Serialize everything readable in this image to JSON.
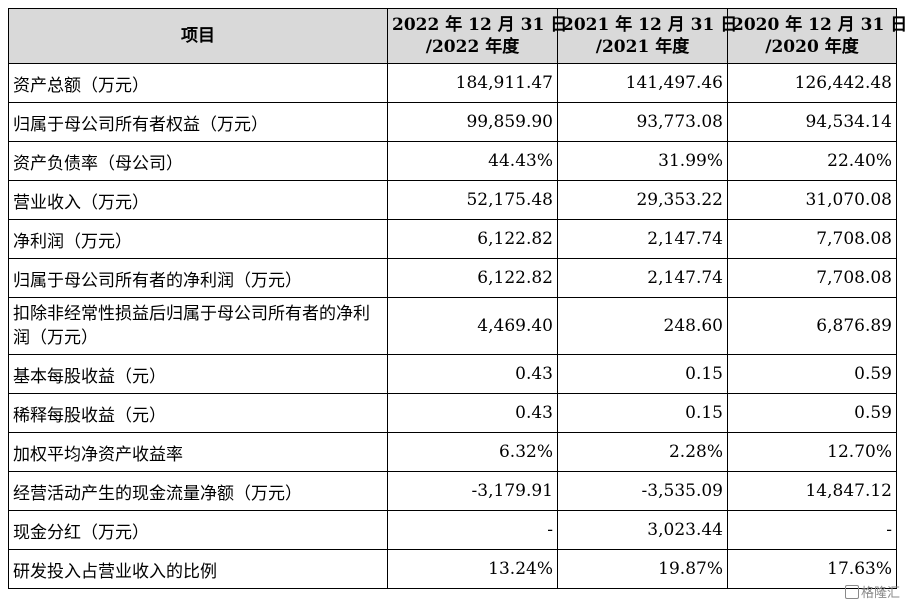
{
  "table": {
    "headers": [
      "项目",
      "2022 年 12 月 31 日 /2022 年度",
      "2021 年 12 月 31 日 /2021 年度",
      "2020 年 12 月 31 日 /2020 年度"
    ],
    "header_lines": [
      [
        "项目"
      ],
      [
        "2022 年 12 月 31 日",
        "/2022 年度"
      ],
      [
        "2021 年 12 月 31 日",
        "/2021 年度"
      ],
      [
        "2020 年 12 月 31 日",
        "/2020 年度"
      ]
    ],
    "rows": [
      {
        "label": "资产总额（万元）",
        "values": [
          "184,911.47",
          "141,497.46",
          "126,442.48"
        ]
      },
      {
        "label": "归属于母公司所有者权益（万元）",
        "values": [
          "99,859.90",
          "93,773.08",
          "94,534.14"
        ]
      },
      {
        "label": "资产负债率（母公司）",
        "values": [
          "44.43%",
          "31.99%",
          "22.40%"
        ]
      },
      {
        "label": "营业收入（万元）",
        "values": [
          "52,175.48",
          "29,353.22",
          "31,070.08"
        ]
      },
      {
        "label": "净利润（万元）",
        "values": [
          "6,122.82",
          "2,147.74",
          "7,708.08"
        ]
      },
      {
        "label": "归属于母公司所有者的净利润（万元）",
        "values": [
          "6,122.82",
          "2,147.74",
          "7,708.08"
        ]
      },
      {
        "label": "扣除非经常性损益后归属于母公司所有者的净利润（万元）",
        "values": [
          "4,469.40",
          "248.60",
          "6,876.89"
        ]
      },
      {
        "label": "基本每股收益（元）",
        "values": [
          "0.43",
          "0.15",
          "0.59"
        ]
      },
      {
        "label": "稀释每股收益（元）",
        "values": [
          "0.43",
          "0.15",
          "0.59"
        ]
      },
      {
        "label": "加权平均净资产收益率",
        "values": [
          "6.32%",
          "2.28%",
          "12.70%"
        ]
      },
      {
        "label": "经营活动产生的现金流量净额（万元）",
        "values": [
          "-3,179.91",
          "-3,535.09",
          "14,847.12"
        ]
      },
      {
        "label": "现金分红（万元）",
        "values": [
          "-",
          "3,023.44",
          "-"
        ]
      },
      {
        "label": "研发投入占营业收入的比例",
        "values": [
          "13.24%",
          "19.87%",
          "17.63%"
        ]
      }
    ]
  },
  "watermark": {
    "text": "格隆汇"
  }
}
